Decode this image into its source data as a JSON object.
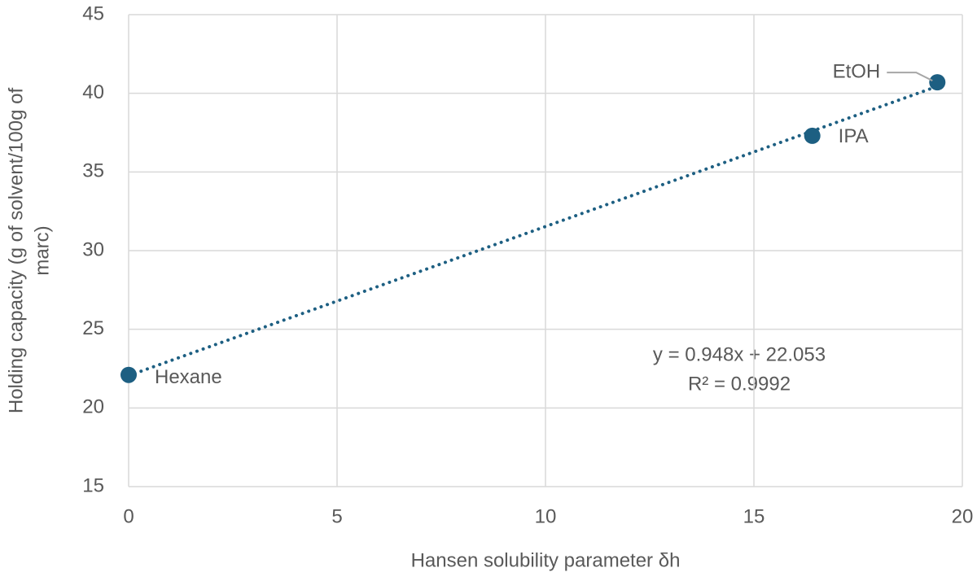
{
  "chart_data": {
    "type": "scatter",
    "xlabel": "Hansen solubility parameter δh",
    "ylabel": [
      "Holding capacity (g of solvent/100g of",
      "marc)"
    ],
    "series": [
      {
        "name": "Holding capacity",
        "color": "#1d5f82",
        "x": [
          0,
          16.4,
          19.4
        ],
        "values": [
          22.1,
          37.3,
          40.7
        ],
        "labels": [
          "Hexane",
          "IPA",
          "EtOH"
        ]
      }
    ],
    "trendline": {
      "slope": 0.948,
      "intercept": 22.053,
      "equation": "y = 0.948x + 22.053",
      "r2": "R² = 0.9992",
      "color": "#1d5f82"
    },
    "xlim": [
      0,
      20
    ],
    "xticks": [
      0,
      5,
      10,
      15,
      20
    ],
    "ylim": [
      15,
      45
    ],
    "yticks": [
      15,
      20,
      25,
      30,
      35,
      40,
      45
    ],
    "grid": true
  }
}
